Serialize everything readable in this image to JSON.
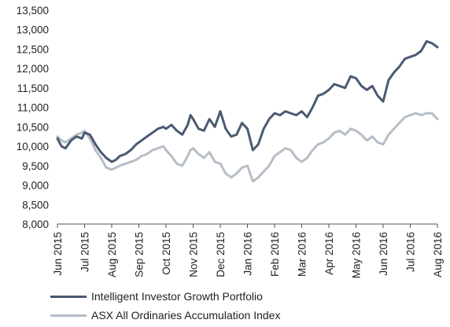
{
  "chart_data": {
    "type": "line",
    "title": "",
    "xlabel": "",
    "ylabel": "",
    "ylim": [
      8000,
      13500
    ],
    "yticks": [
      8000,
      8500,
      9000,
      9500,
      10000,
      10500,
      11000,
      11500,
      12000,
      12500,
      13000,
      13500
    ],
    "ytick_labels": [
      "8,000",
      "8,500",
      "9,000",
      "9,500",
      "10,000",
      "10,500",
      "11,000",
      "11,500",
      "12,000",
      "12,500",
      "13,000",
      "13,500"
    ],
    "xtick_labels": [
      "Jun 2015",
      "Jul 2015",
      "Aug 2015",
      "Sep 2015",
      "Oct 2015",
      "Nov 2015",
      "Dec 2015",
      "Jan 2016",
      "Feb 2016",
      "Mar 2016",
      "Apr 2016",
      "May 2016",
      "Jun 2016",
      "Jul 2016",
      "Aug 2016"
    ],
    "x_unit": "months since first tick (Jun 2015 = 0)",
    "grid": false,
    "legend_position": "bottom-left",
    "series": [
      {
        "name": "Intelligent Investor Growth Portfolio",
        "color": "#4a5a72",
        "x": [
          0,
          0.15,
          0.3,
          0.5,
          0.7,
          0.9,
          1.0,
          1.2,
          1.4,
          1.6,
          1.8,
          2.0,
          2.15,
          2.3,
          2.5,
          2.7,
          2.9,
          3.1,
          3.3,
          3.5,
          3.7,
          3.9,
          4.0,
          4.2,
          4.4,
          4.6,
          4.8,
          4.9,
          5.0,
          5.2,
          5.4,
          5.6,
          5.8,
          6.0,
          6.2,
          6.4,
          6.6,
          6.8,
          7.0,
          7.2,
          7.4,
          7.6,
          7.8,
          8.0,
          8.2,
          8.4,
          8.6,
          8.8,
          9.0,
          9.2,
          9.4,
          9.6,
          9.8,
          10.0,
          10.2,
          10.4,
          10.6,
          10.8,
          11.0,
          11.2,
          11.4,
          11.6,
          11.8,
          12.0,
          12.2,
          12.4,
          12.6,
          12.8,
          13.0,
          13.2,
          13.4,
          13.6,
          13.8,
          14.0
        ],
        "values": [
          10200,
          10000,
          9950,
          10150,
          10250,
          10200,
          10350,
          10300,
          10050,
          9850,
          9700,
          9600,
          9650,
          9750,
          9800,
          9900,
          10050,
          10150,
          10250,
          10350,
          10450,
          10500,
          10450,
          10550,
          10400,
          10300,
          10550,
          10800,
          10700,
          10450,
          10400,
          10700,
          10500,
          10900,
          10450,
          10250,
          10300,
          10600,
          10450,
          9900,
          10050,
          10450,
          10700,
          10850,
          10800,
          10900,
          10850,
          10800,
          10900,
          10750,
          11000,
          11300,
          11350,
          11450,
          11600,
          11550,
          11500,
          11800,
          11750,
          11550,
          11450,
          11550,
          11300,
          11150,
          11700,
          11900,
          12050,
          12250,
          12300,
          12350,
          12450,
          12700,
          12650,
          12550
        ]
      },
      {
        "name": "ASX All Ordinaries Accumulation Index",
        "color": "#b6bec7",
        "x": [
          0,
          0.15,
          0.3,
          0.5,
          0.7,
          0.9,
          1.0,
          1.2,
          1.4,
          1.6,
          1.8,
          2.0,
          2.15,
          2.3,
          2.5,
          2.7,
          2.9,
          3.1,
          3.3,
          3.5,
          3.7,
          3.9,
          4.0,
          4.2,
          4.4,
          4.6,
          4.8,
          4.9,
          5.0,
          5.2,
          5.4,
          5.6,
          5.8,
          6.0,
          6.2,
          6.4,
          6.6,
          6.8,
          7.0,
          7.2,
          7.4,
          7.6,
          7.8,
          8.0,
          8.2,
          8.4,
          8.6,
          8.8,
          9.0,
          9.2,
          9.4,
          9.6,
          9.8,
          10.0,
          10.2,
          10.4,
          10.6,
          10.8,
          11.0,
          11.2,
          11.4,
          11.6,
          11.8,
          12.0,
          12.2,
          12.4,
          12.6,
          12.8,
          13.0,
          13.2,
          13.4,
          13.6,
          13.8,
          14.0
        ],
        "values": [
          10250,
          10150,
          10100,
          10200,
          10300,
          10350,
          10400,
          10200,
          9900,
          9700,
          9450,
          9400,
          9450,
          9500,
          9550,
          9600,
          9650,
          9750,
          9800,
          9900,
          9950,
          10000,
          9900,
          9750,
          9550,
          9500,
          9750,
          9900,
          9950,
          9800,
          9700,
          9850,
          9600,
          9550,
          9300,
          9200,
          9300,
          9450,
          9500,
          9100,
          9200,
          9350,
          9500,
          9750,
          9850,
          9950,
          9900,
          9700,
          9600,
          9700,
          9900,
          10050,
          10100,
          10200,
          10350,
          10400,
          10300,
          10450,
          10400,
          10300,
          10150,
          10250,
          10100,
          10050,
          10300,
          10450,
          10600,
          10750,
          10800,
          10850,
          10800,
          10850,
          10850,
          10700
        ]
      }
    ]
  }
}
